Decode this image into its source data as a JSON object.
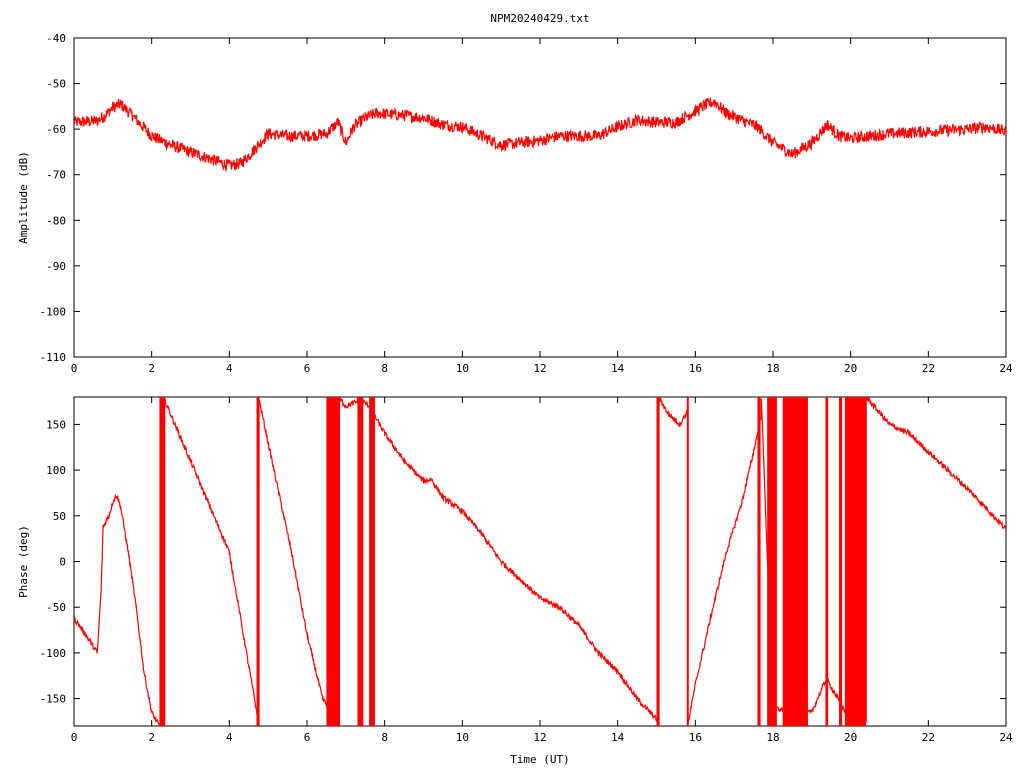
{
  "chart_data": [
    {
      "type": "line",
      "title": "NPM20240429.txt",
      "xlabel": "",
      "ylabel": "Amplitude (dB)",
      "xlim": [
        0,
        24
      ],
      "ylim": [
        -110,
        -40
      ],
      "xticks": [
        "0",
        "2",
        "4",
        "6",
        "8",
        "10",
        "12",
        "14",
        "16",
        "18",
        "20",
        "22",
        "24"
      ],
      "yticks": [
        "-40",
        "-50",
        "-60",
        "-70",
        "-80",
        "-90",
        "-100",
        "-110"
      ],
      "grid": false,
      "series": [
        {
          "color": "#ff0000",
          "noise": 1.3,
          "x": [
            0,
            0.6,
            0.8,
            1.0,
            1.2,
            1.5,
            2.0,
            2.5,
            3.0,
            3.5,
            4.0,
            4.3,
            4.7,
            5.0,
            5.5,
            6.0,
            6.5,
            6.8,
            7.0,
            7.2,
            7.5,
            7.8,
            8.5,
            9.0,
            9.5,
            10.0,
            10.5,
            11.0,
            11.5,
            12.0,
            12.5,
            13.0,
            13.5,
            14.0,
            14.5,
            15.0,
            15.5,
            16.0,
            16.3,
            16.5,
            16.8,
            17.2,
            17.6,
            18.0,
            18.5,
            19.0,
            19.4,
            19.7,
            20.0,
            20.5,
            21.0,
            22.0,
            23.0,
            23.5,
            24.0
          ],
          "y": [
            -58.5,
            -58.2,
            -57,
            -55.2,
            -54.5,
            -57,
            -61.5,
            -63.5,
            -65,
            -66.5,
            -68,
            -67.5,
            -64,
            -61,
            -61.5,
            -61.5,
            -61,
            -58.5,
            -63,
            -59.5,
            -57.5,
            -56.5,
            -57,
            -57.5,
            -59,
            -59.5,
            -61.5,
            -63.5,
            -63,
            -62.5,
            -61.5,
            -61.5,
            -61.5,
            -59.5,
            -58,
            -58.5,
            -58.5,
            -56,
            -54.5,
            -54,
            -56.5,
            -58,
            -59.5,
            -63,
            -65.5,
            -63,
            -59,
            -61.5,
            -62,
            -61.5,
            -61,
            -60.5,
            -60,
            -59.5,
            -60.5
          ]
        }
      ]
    },
    {
      "type": "line",
      "title": "",
      "xlabel": "Time (UT)",
      "ylabel": "Phase (deg)",
      "xlim": [
        0,
        24
      ],
      "ylim": [
        -180,
        180
      ],
      "xticks": [
        "0",
        "2",
        "4",
        "6",
        "8",
        "10",
        "12",
        "14",
        "16",
        "18",
        "20",
        "22",
        "24"
      ],
      "yticks": [
        "150",
        "100",
        "50",
        "0",
        "-50",
        "-100",
        "-150"
      ],
      "grid": false,
      "series": [
        {
          "color": "#ff0000",
          "noise": 3,
          "x": [
            0,
            0.3,
            0.6,
            0.7,
            0.75,
            0.9,
            1.0,
            1.1,
            1.2,
            1.4,
            1.6,
            1.8,
            2.0,
            2.2,
            2.3,
            2.3,
            2.6,
            3.0,
            3.5,
            4.0,
            4.4,
            4.75,
            4.75,
            5.2,
            5.6,
            6.0,
            6.4,
            6.8,
            6.8,
            7.0,
            7.3,
            7.3,
            7.6,
            8.0,
            8.5,
            9.0,
            9.2,
            9.5,
            10.0,
            10.5,
            11.0,
            11.5,
            12.0,
            12.5,
            13.0,
            13.5,
            14.0,
            14.5,
            15.05,
            15.05,
            15.3,
            15.6,
            15.8,
            15.8,
            16.0,
            16.4,
            16.8,
            17.2,
            17.5,
            17.7,
            17.7,
            18.0,
            18.5,
            19.0,
            19.4,
            19.4,
            19.8,
            20.0,
            20.4,
            20.4,
            21.0,
            21.5,
            22.0,
            23.0,
            23.5,
            24.0
          ],
          "y": [
            -62,
            -80,
            -100,
            -30,
            38,
            50,
            65,
            73,
            60,
            10,
            -50,
            -120,
            -165,
            -180,
            -180,
            180,
            150,
            110,
            60,
            10,
            -90,
            -175,
            180,
            90,
            10,
            -80,
            -150,
            -175,
            180,
            170,
            175,
            180,
            170,
            140,
            110,
            88,
            90,
            70,
            55,
            30,
            0,
            -20,
            -40,
            -50,
            -70,
            -100,
            -120,
            -150,
            -175,
            180,
            162,
            150,
            165,
            -180,
            -135,
            -60,
            10,
            65,
            120,
            160,
            178,
            -160,
            -165,
            -165,
            -125,
            -130,
            -160,
            -170,
            -175,
            180,
            150,
            140,
            120,
            80,
            58,
            35
          ]
        }
      ],
      "bands": [
        {
          "x": [
            2.2,
            2.35
          ]
        },
        {
          "x": [
            4.7,
            4.78
          ]
        },
        {
          "x": [
            6.5,
            6.85
          ]
        },
        {
          "x": [
            7.3,
            7.45
          ]
        },
        {
          "x": [
            7.6,
            7.75
          ]
        },
        {
          "x": [
            15.0,
            15.08
          ]
        },
        {
          "x": [
            15.78,
            15.83
          ]
        },
        {
          "x": [
            17.6,
            17.68
          ]
        },
        {
          "x": [
            17.85,
            18.1
          ]
        },
        {
          "x": [
            18.25,
            18.9
          ]
        },
        {
          "x": [
            19.35,
            19.42
          ]
        },
        {
          "x": [
            19.7,
            19.78
          ]
        },
        {
          "x": [
            19.85,
            20.4
          ]
        }
      ]
    }
  ]
}
